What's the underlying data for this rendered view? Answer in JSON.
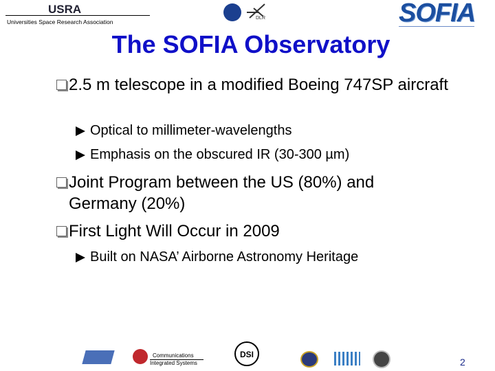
{
  "header": {
    "usra": "USRA",
    "usra_full": "Universities Space Research Association",
    "dlr": "DLR",
    "sofia": "SOFIA"
  },
  "title": "The SOFIA Observatory",
  "bullets": [
    {
      "text": "2.5 m telescope in a modified Boeing 747SP aircraft",
      "sub": [
        "Optical to millimeter-wavelengths",
        "Emphasis on the obscured IR (30-300 µm)"
      ]
    },
    {
      "text": "Joint Program between the US (80%) and Germany (20%)",
      "sub": []
    },
    {
      "text": "First Light Will Occur in 2009",
      "sub": [
        "Built on NASA’ Airborne Astronomy Heritage"
      ]
    }
  ],
  "footer": {
    "l3_line1": "Communications",
    "l3_line2": "Integrated Systems",
    "dsi": "DSI",
    "page": "2"
  }
}
